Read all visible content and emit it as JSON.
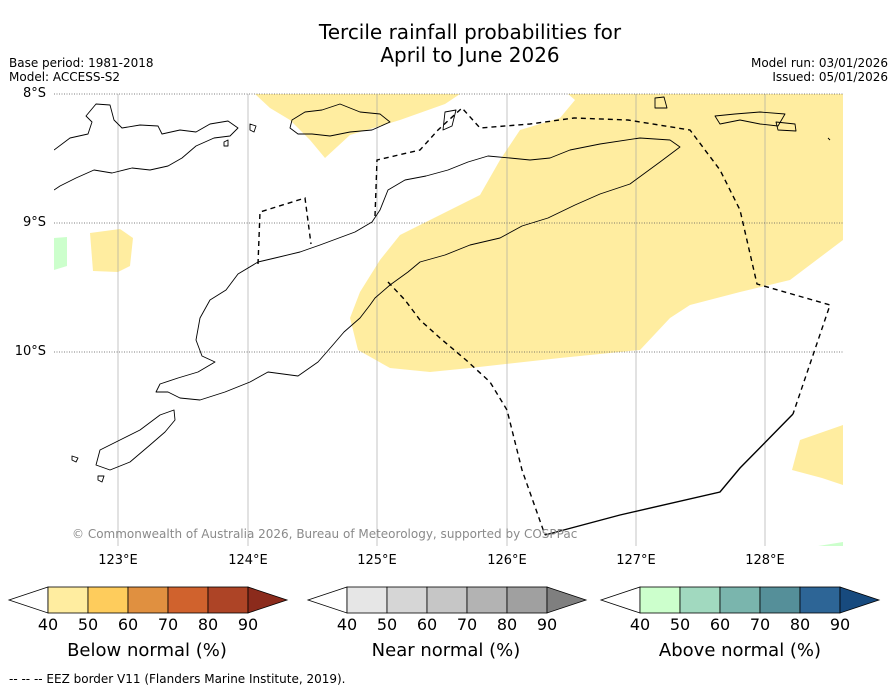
{
  "header": {
    "title_line1": "Tercile rainfall probabilities for",
    "title_line2": "April to June 2026",
    "base_period": "Base period: 1981-2018",
    "model": "Model: ACCESS-S2",
    "model_run": "Model run: 03/01/2026",
    "issued": "Issued: 05/01/2026"
  },
  "map": {
    "lat_labels": [
      "8°S",
      "9°S",
      "10°S"
    ],
    "lon_labels": [
      "123°E",
      "124°E",
      "125°E",
      "126°E",
      "127°E",
      "128°E"
    ],
    "copyright": "© Commonwealth of Australia 2026, Bureau of Meteorology, supported by COSPPac",
    "colors": {
      "below_50": "#ffeda0",
      "above_50": "#ccffcc",
      "coast": "#000000",
      "grid": "#9e9e9e"
    }
  },
  "colorbars": [
    {
      "label": "Below normal (%)",
      "ticks": [
        "40",
        "50",
        "60",
        "70",
        "80",
        "90"
      ],
      "colors": [
        "#ffffff",
        "#ffeda0",
        "#fecc5c",
        "#e09040",
        "#d0622d",
        "#ad4426",
        "#8b2b1c"
      ]
    },
    {
      "label": "Near normal (%)",
      "ticks": [
        "40",
        "50",
        "60",
        "70",
        "80",
        "90"
      ],
      "colors": [
        "#ffffff",
        "#e6e6e6",
        "#d6d6d6",
        "#c6c6c6",
        "#b3b3b3",
        "#a0a0a0",
        "#7f7f7f"
      ]
    },
    {
      "label": "Above normal (%)",
      "ticks": [
        "40",
        "50",
        "60",
        "70",
        "80",
        "90"
      ],
      "colors": [
        "#ffffff",
        "#ccffcc",
        "#a1d9bf",
        "#7ab5ad",
        "#558f99",
        "#2d6596",
        "#174a7e"
      ]
    }
  ],
  "footer": {
    "legend": "--  --  -- EEZ border V11 (Flanders Marine Institute, 2019)."
  }
}
